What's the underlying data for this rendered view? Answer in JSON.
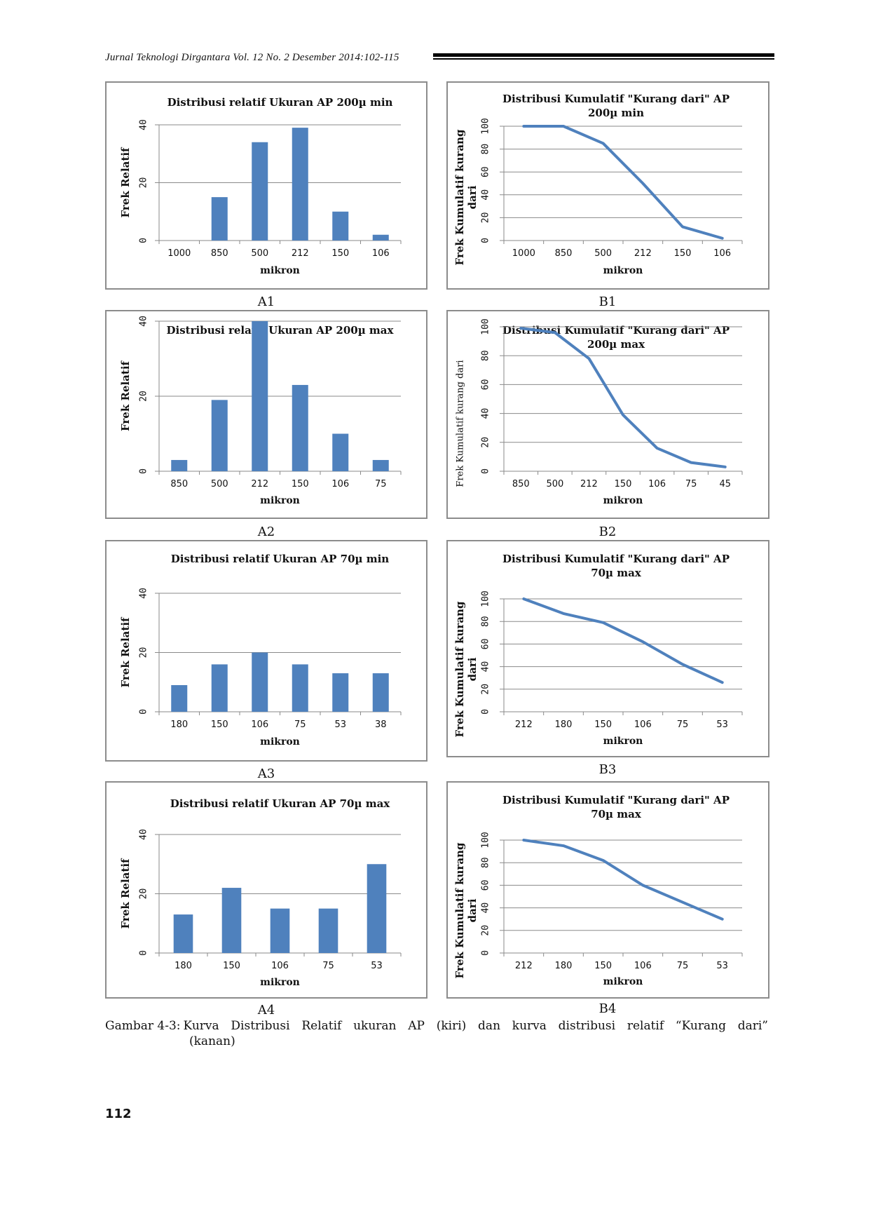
{
  "header": {
    "journal": "Jurnal Teknologi Dirgantara Vol. 12 No. 2 Desember 2014:102-115"
  },
  "colors": {
    "bar": "#4f81bd",
    "line": "#4f81bd",
    "grid": "#8a8a8a",
    "border": "#8c8c8c"
  },
  "chart_data": [
    {
      "id": "A1",
      "type": "bar",
      "label": "A1",
      "title": [
        "Distribusi relatif Ukuran AP 200µ min"
      ],
      "categories": [
        "1000",
        "850",
        "500",
        "212",
        "150",
        "106"
      ],
      "values": [
        0,
        15,
        34,
        39,
        10,
        2
      ],
      "xlabel": "mikron",
      "ylabel": [
        "Frek Relatif"
      ],
      "yticks": [
        "0",
        "20",
        "40"
      ],
      "ylim": [
        0,
        40
      ],
      "grid": true
    },
    {
      "id": "B1",
      "type": "line",
      "label": "B1",
      "title": [
        "Distribusi Kumulatif \"Kurang dari\" AP",
        "200µ min"
      ],
      "categories": [
        "1000",
        "850",
        "500",
        "212",
        "150",
        "106"
      ],
      "values": [
        100,
        100,
        85,
        50,
        12,
        2
      ],
      "xlabel": "mikron",
      "ylabel": [
        "Frek Kumulatif kurang",
        "dari"
      ],
      "yticks": [
        "0",
        "20",
        "40",
        "60",
        "80",
        "100"
      ],
      "ylim": [
        0,
        100
      ],
      "grid": true
    },
    {
      "id": "A2",
      "type": "bar",
      "label": "A2",
      "title": [
        "Distribusi relatif Ukuran AP 200µ max"
      ],
      "categories": [
        "850",
        "500",
        "212",
        "150",
        "106",
        "75"
      ],
      "values": [
        3,
        19,
        40,
        23,
        10,
        3
      ],
      "xlabel": "mikron",
      "ylabel": [
        "Frek Relatif"
      ],
      "yticks": [
        "0",
        "20",
        "40"
      ],
      "ylim": [
        0,
        40
      ],
      "grid": true
    },
    {
      "id": "B2",
      "type": "line",
      "label": "B2",
      "title": [
        "Distribusi Kumulatif \"Kurang dari\" AP",
        "200µ max"
      ],
      "categories": [
        "850",
        "500",
        "212",
        "150",
        "106",
        "75",
        "45"
      ],
      "values": [
        99,
        96,
        78,
        39,
        16,
        6,
        3
      ],
      "xlabel": "mikron",
      "ylabel": [
        "Frek Kumulatif kurang dari"
      ],
      "yticks": [
        "0",
        "20",
        "40",
        "60",
        "80",
        "100"
      ],
      "ylim": [
        0,
        100
      ],
      "grid": true
    },
    {
      "id": "A3",
      "type": "bar",
      "label": "A3",
      "title": [
        "Distribusi relatif Ukuran AP 70µ min"
      ],
      "categories": [
        "180",
        "150",
        "106",
        "75",
        "53",
        "38"
      ],
      "values": [
        9,
        16,
        20,
        16,
        13,
        13
      ],
      "xlabel": "mikron",
      "ylabel": [
        "Frek Relatif"
      ],
      "yticks": [
        "0",
        "20",
        "40"
      ],
      "ylim": [
        0,
        40
      ],
      "grid": true
    },
    {
      "id": "B3",
      "type": "line",
      "label": "B3",
      "title": [
        "Distribusi Kumulatif \"Kurang dari\" AP",
        "70µ max"
      ],
      "categories": [
        "212",
        "180",
        "150",
        "106",
        "75",
        "53"
      ],
      "values": [
        100,
        87,
        79,
        62,
        42,
        26
      ],
      "xlabel": "mikron",
      "ylabel": [
        "Frek Kumulatif kurang",
        "dari"
      ],
      "yticks": [
        "0",
        "20",
        "40",
        "60",
        "80",
        "100"
      ],
      "ylim": [
        0,
        100
      ],
      "grid": true
    },
    {
      "id": "A4",
      "type": "bar",
      "label": "A4",
      "title": [
        "Distribusi relatif Ukuran AP 70µ max"
      ],
      "categories": [
        "180",
        "150",
        "106",
        "75",
        "53"
      ],
      "values": [
        13,
        22,
        15,
        15,
        30
      ],
      "xlabel": "mikron",
      "ylabel": [
        "Frek Relatif"
      ],
      "yticks": [
        "0",
        "20",
        "40"
      ],
      "ylim": [
        0,
        40
      ],
      "grid": true
    },
    {
      "id": "B4",
      "type": "line",
      "label": "B4",
      "title": [
        "Distribusi Kumulatif \"Kurang dari\" AP",
        "70µ max"
      ],
      "categories": [
        "212",
        "180",
        "150",
        "106",
        "75",
        "53"
      ],
      "values": [
        100,
        95,
        82,
        60,
        45,
        30
      ],
      "xlabel": "mikron",
      "ylabel": [
        "Frek Kumulatif kurang",
        "dari"
      ],
      "yticks": [
        "0",
        "20",
        "40",
        "60",
        "80",
        "100"
      ],
      "ylim": [
        0,
        100
      ],
      "grid": true
    }
  ],
  "caption": {
    "label": "Gambar 4-3:",
    "line1": "Kurva Distribusi Relatif ukuran AP (kiri) dan kurva distribusi relatif “Kurang dari”",
    "line2": "(kanan)"
  },
  "page_number": "112"
}
